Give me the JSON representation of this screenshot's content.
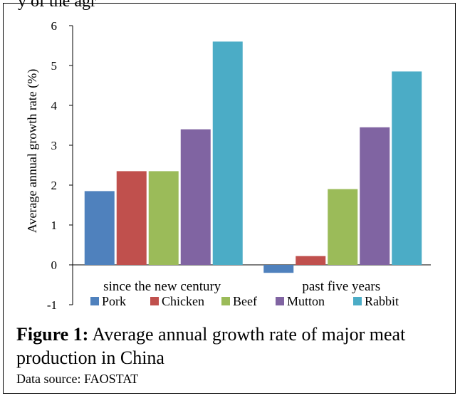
{
  "partial_top_text": "y of the agr",
  "chart_data": {
    "type": "bar",
    "categories": [
      "since the new century",
      "past five years"
    ],
    "series": [
      {
        "name": "Pork",
        "color": "#4F81BD",
        "values": [
          1.85,
          -0.2
        ]
      },
      {
        "name": "Chicken",
        "color": "#C0504D",
        "values": [
          2.35,
          0.22
        ]
      },
      {
        "name": "Beef",
        "color": "#9BBB59",
        "values": [
          2.35,
          1.9
        ]
      },
      {
        "name": "Mutton",
        "color": "#8064A2",
        "values": [
          3.4,
          3.45
        ]
      },
      {
        "name": "Rabbit",
        "color": "#4BACC6",
        "values": [
          5.6,
          4.85
        ]
      }
    ],
    "ylabel": "Average annual growth rate (%)",
    "ylim": [
      -1,
      6
    ],
    "yticks": [
      "-1",
      "0",
      "1",
      "2",
      "3",
      "4",
      "5",
      "6"
    ],
    "grid": false,
    "legend_position": "bottom"
  },
  "caption": {
    "label": "Figure 1:",
    "text": " Average annual growth rate of major meat production in China",
    "source": "Data source: FAOSTAT"
  }
}
